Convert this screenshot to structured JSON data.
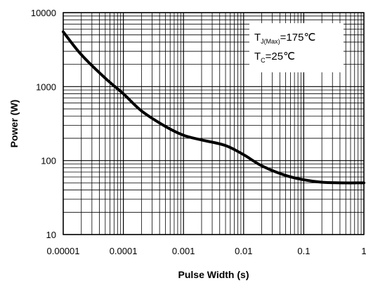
{
  "chart_data": {
    "type": "line",
    "xlabel": "Pulse Width (s)",
    "ylabel": "Power (W)",
    "xscale": "log",
    "yscale": "log",
    "xlim": [
      1e-05,
      1
    ],
    "ylim": [
      10,
      10000
    ],
    "grid": true,
    "x_tick_labels": [
      "0.00001",
      "0.0001",
      "0.001",
      "0.01",
      "0.1",
      "1"
    ],
    "y_tick_labels": [
      "10",
      "100",
      "1000",
      "10000"
    ],
    "annotations": {
      "tj_main": "T",
      "tj_sub": "J(Max)",
      "tj_rest": "=175℃",
      "tc_main": "T",
      "tc_sub": "C",
      "tc_rest": "=25℃"
    },
    "series": [
      {
        "color": "#000000",
        "x": [
          1e-05,
          2e-05,
          5e-05,
          0.0001,
          0.0002,
          0.0005,
          0.001,
          0.002,
          0.005,
          0.01,
          0.02,
          0.05,
          0.1,
          0.2,
          0.4,
          1
        ],
        "y": [
          5500,
          2700,
          1300,
          800,
          470,
          290,
          220,
          190,
          160,
          120,
          85,
          63,
          55,
          51,
          50,
          50
        ]
      }
    ]
  }
}
